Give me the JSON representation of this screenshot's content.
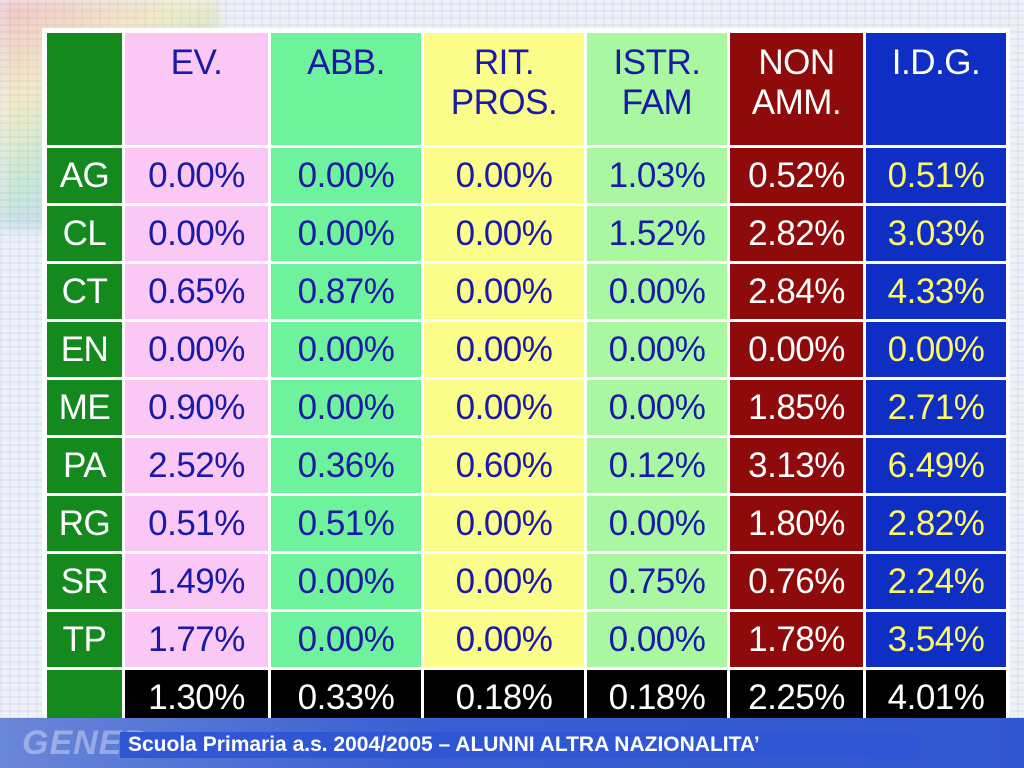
{
  "table": {
    "headers": [
      "EV.",
      "ABB.",
      "RIT.\nPROS.",
      "ISTR.\nFAM",
      "NON\nAMM.",
      "I.D.G."
    ],
    "rows": [
      {
        "label": "AG",
        "values": [
          "0.00%",
          "0.00%",
          "0.00%",
          "1.03%",
          "0.52%",
          "0.51%"
        ]
      },
      {
        "label": "CL",
        "values": [
          "0.00%",
          "0.00%",
          "0.00%",
          "1.52%",
          "2.82%",
          "3.03%"
        ]
      },
      {
        "label": "CT",
        "values": [
          "0.65%",
          "0.87%",
          "0.00%",
          "0.00%",
          "2.84%",
          "4.33%"
        ]
      },
      {
        "label": "EN",
        "values": [
          "0.00%",
          "0.00%",
          "0.00%",
          "0.00%",
          "0.00%",
          "0.00%"
        ]
      },
      {
        "label": "ME",
        "values": [
          "0.90%",
          "0.00%",
          "0.00%",
          "0.00%",
          "1.85%",
          "2.71%"
        ]
      },
      {
        "label": "PA",
        "values": [
          "2.52%",
          "0.36%",
          "0.60%",
          "0.12%",
          "3.13%",
          "6.49%"
        ]
      },
      {
        "label": "RG",
        "values": [
          "0.51%",
          "0.51%",
          "0.00%",
          "0.00%",
          "1.80%",
          "2.82%"
        ]
      },
      {
        "label": "SR",
        "values": [
          "1.49%",
          "0.00%",
          "0.00%",
          "0.75%",
          "0.76%",
          "2.24%"
        ]
      },
      {
        "label": "TP",
        "values": [
          "1.77%",
          "0.00%",
          "0.00%",
          "0.00%",
          "1.78%",
          "3.54%"
        ]
      }
    ],
    "totals": [
      "1.30%",
      "0.33%",
      "0.18%",
      "0.18%",
      "2.25%",
      "4.01%"
    ]
  },
  "colors": {
    "label_column": "#148a1e",
    "ev": "#fbc8f6",
    "abb": "#6ef29c",
    "rit_pros": "#fbfd8a",
    "istr_fam": "#a9f7a1",
    "non_amm": "#8f0a0a",
    "idg": "#0f2fc4",
    "totals_row": "#000000",
    "footer_band": "#3157d0"
  },
  "footer": {
    "logo": "GENER",
    "caption": "Scuola Primaria a.s. 2004/2005 – ALUNNI ALTRA NAZIONALITA’"
  }
}
